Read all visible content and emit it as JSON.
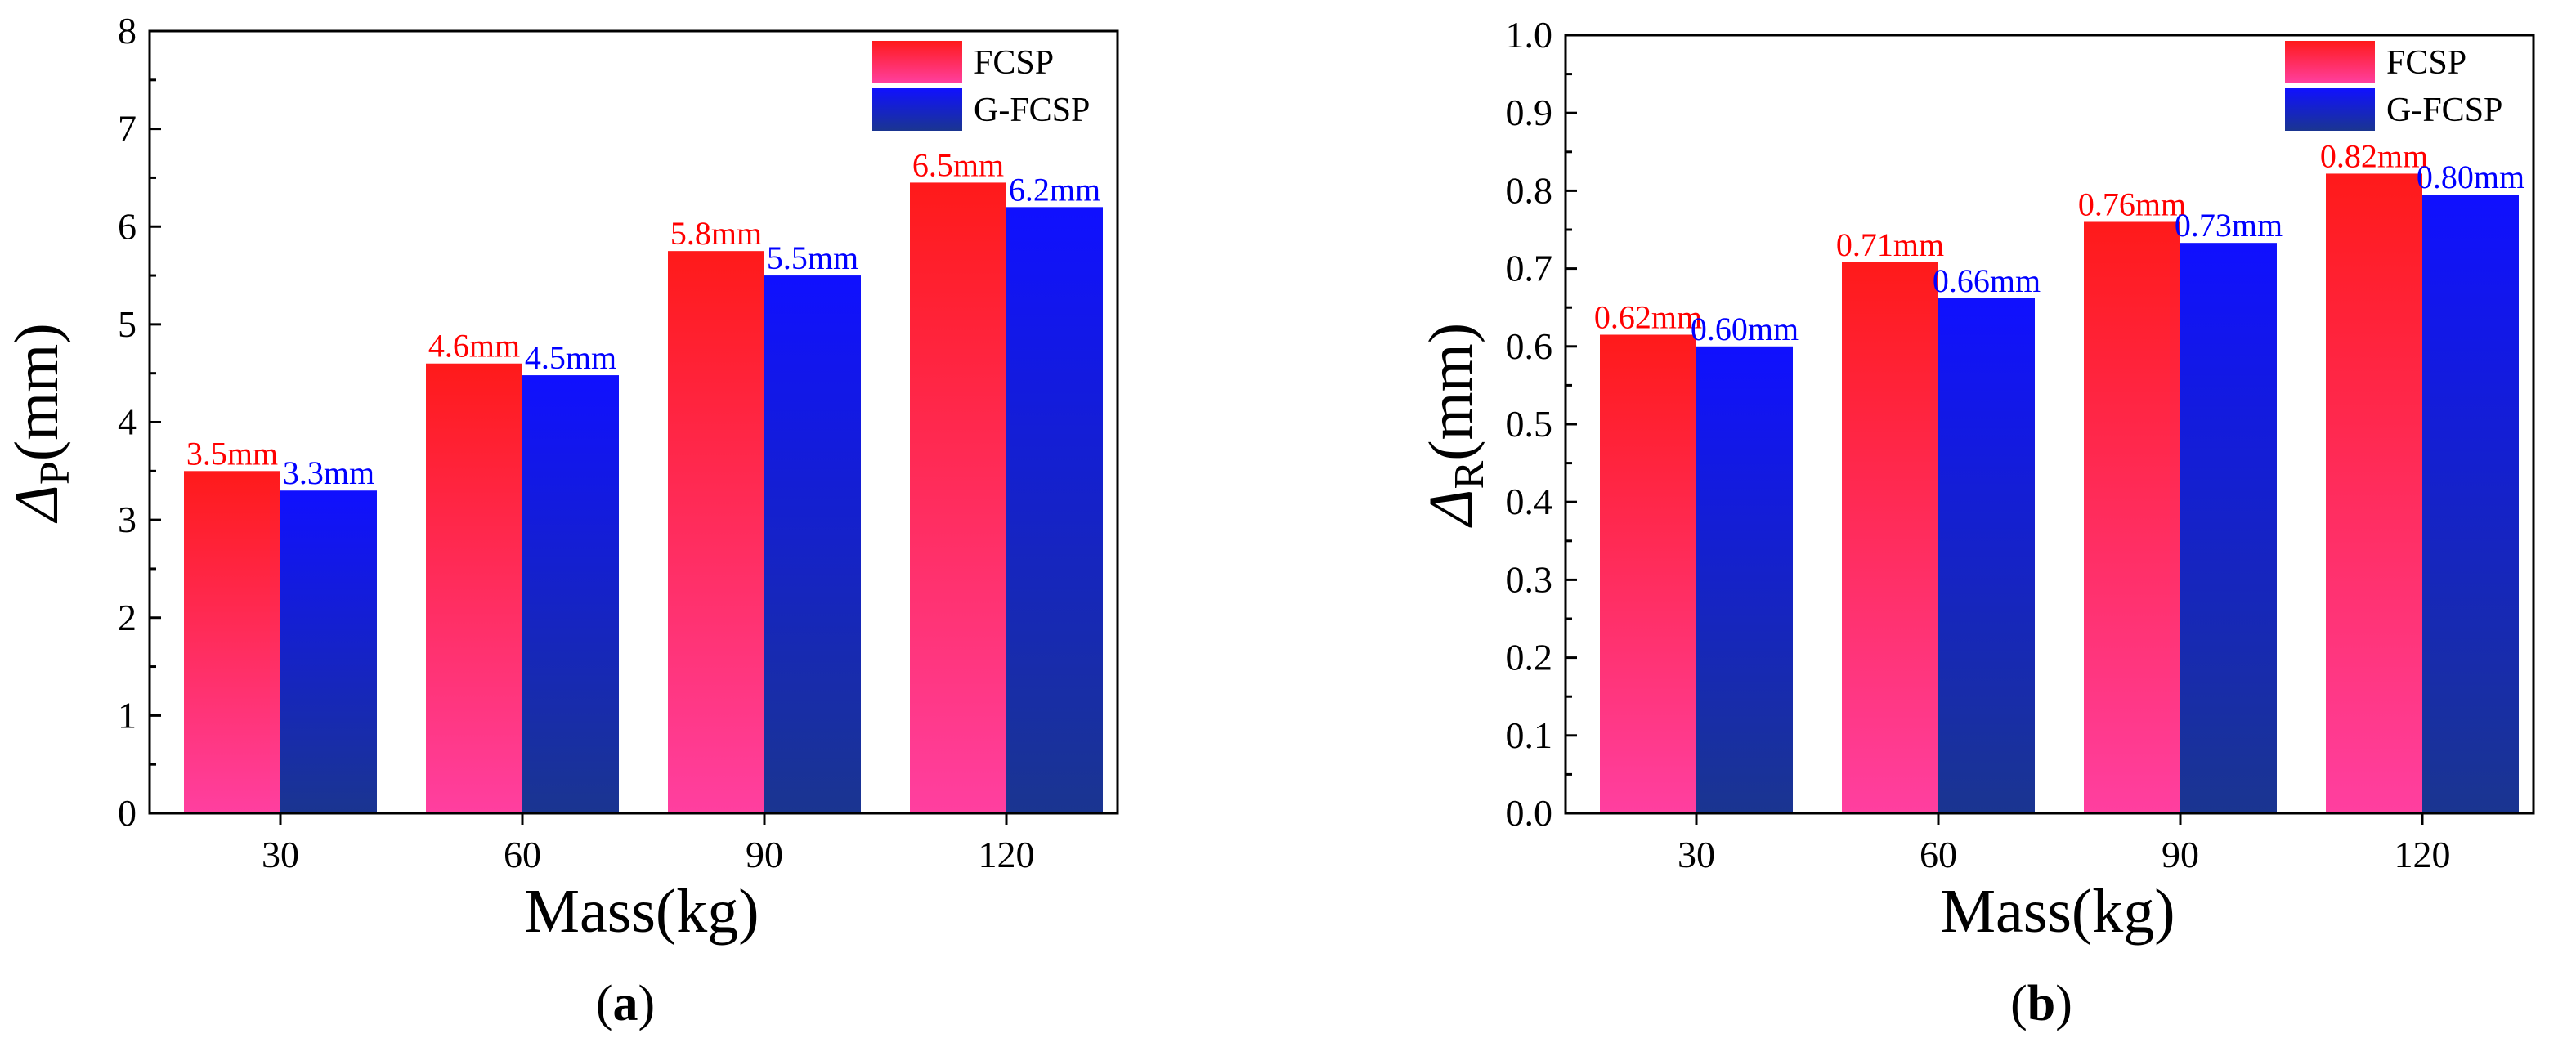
{
  "colors": {
    "fcsp_top": "#ff1a1a",
    "fcsp_bottom": "#ff3fa0",
    "gfcsp_top": "#1010ff",
    "gfcsp_bottom": "#1a3590",
    "fcsp_label": "#ff0000",
    "gfcsp_label": "#0000ff"
  },
  "chart_data": [
    {
      "type": "bar",
      "panel": "a",
      "caption": {
        "open": "(",
        "letter": "a",
        "close": ")"
      },
      "xlabel": "Mass(kg)",
      "ylabel": {
        "symbol": "Δ",
        "subscript": "P",
        "unit": "(mm)"
      },
      "categories": [
        "30",
        "60",
        "90",
        "120"
      ],
      "ylim": [
        0,
        8
      ],
      "yticks": [
        "0",
        "1",
        "2",
        "3",
        "4",
        "5",
        "6",
        "7",
        "8"
      ],
      "legend": {
        "position": "top-right",
        "entries": [
          "FCSP",
          "G-FCSP"
        ]
      },
      "series": [
        {
          "name": "FCSP",
          "values": [
            3.5,
            4.6,
            5.75,
            6.45
          ],
          "labels": [
            "3.5mm",
            "4.6mm",
            "5.8mm",
            "6.5mm"
          ]
        },
        {
          "name": "G-FCSP",
          "values": [
            3.3,
            4.48,
            5.5,
            6.2
          ],
          "labels": [
            "3.3mm",
            "4.5mm",
            "5.5mm",
            "6.2mm"
          ]
        }
      ]
    },
    {
      "type": "bar",
      "panel": "b",
      "caption": {
        "open": "(",
        "letter": "b",
        "close": ")"
      },
      "xlabel": "Mass(kg)",
      "ylabel": {
        "symbol": "Δ",
        "subscript": "R",
        "unit": "(mm)"
      },
      "categories": [
        "30",
        "60",
        "90",
        "120"
      ],
      "ylim": [
        0,
        1.0
      ],
      "yticks": [
        "0.0",
        "0.1",
        "0.2",
        "0.3",
        "0.4",
        "0.5",
        "0.6",
        "0.7",
        "0.8",
        "0.9",
        "1.0"
      ],
      "legend": {
        "position": "top-right",
        "entries": [
          "FCSP",
          "G-FCSP"
        ]
      },
      "series": [
        {
          "name": "FCSP",
          "values": [
            0.615,
            0.708,
            0.76,
            0.822
          ],
          "labels": [
            "0.62mm",
            "0.71mm",
            "0.76mm",
            "0.82mm"
          ]
        },
        {
          "name": "G-FCSP",
          "values": [
            0.6,
            0.662,
            0.733,
            0.795
          ],
          "labels": [
            "0.60mm",
            "0.66mm",
            "0.73mm",
            "0.80mm"
          ]
        }
      ]
    }
  ]
}
